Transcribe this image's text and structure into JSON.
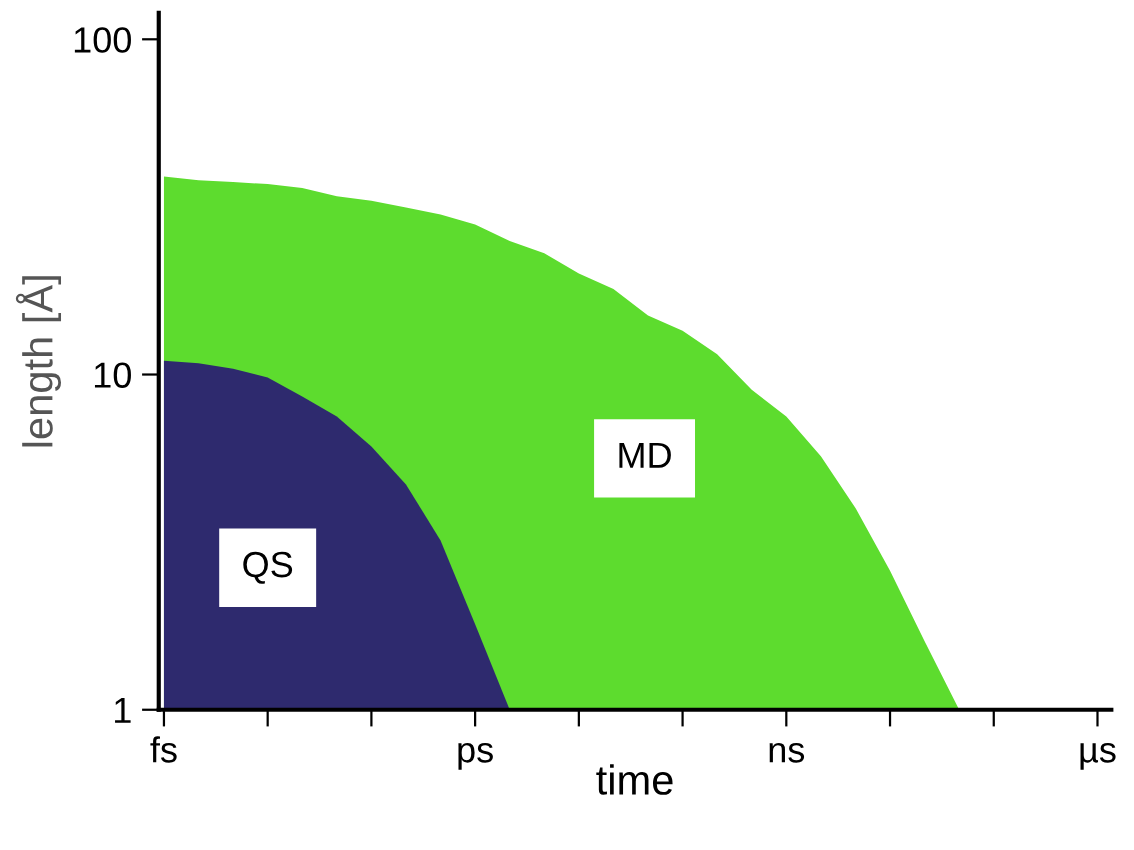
{
  "chart_data": {
    "type": "area",
    "xlabel": "time",
    "ylabel": "length [Å]",
    "log": "y",
    "grid": false,
    "legend": false,
    "ylim": [
      1,
      120
    ],
    "yticks": [
      1,
      10,
      100
    ],
    "categories": [
      "fs",
      null,
      null,
      null,
      null,
      null,
      null,
      null,
      null,
      "ps",
      null,
      null,
      null,
      null,
      null,
      null,
      null,
      null,
      "ns",
      null,
      null,
      null,
      null,
      null,
      null,
      null,
      null,
      "µs"
    ],
    "series": [
      {
        "name": "MD",
        "color": "#5ddc2e",
        "values": [
          39,
          38,
          37.5,
          37,
          36,
          34,
          33,
          31.5,
          30,
          28,
          25,
          23,
          20,
          18,
          15,
          13.5,
          11.5,
          9,
          7.5,
          5.7,
          4,
          2.6,
          1.6,
          1,
          null,
          null,
          null,
          null
        ]
      },
      {
        "name": "QS",
        "color": "#2e2a6e",
        "values": [
          11,
          10.8,
          10.4,
          9.8,
          8.6,
          7.5,
          6.1,
          4.7,
          3.2,
          1.8,
          1,
          null,
          null,
          null,
          null,
          null,
          null,
          null,
          null,
          null,
          null,
          null,
          null,
          null,
          null,
          null,
          null,
          null
        ]
      }
    ]
  }
}
